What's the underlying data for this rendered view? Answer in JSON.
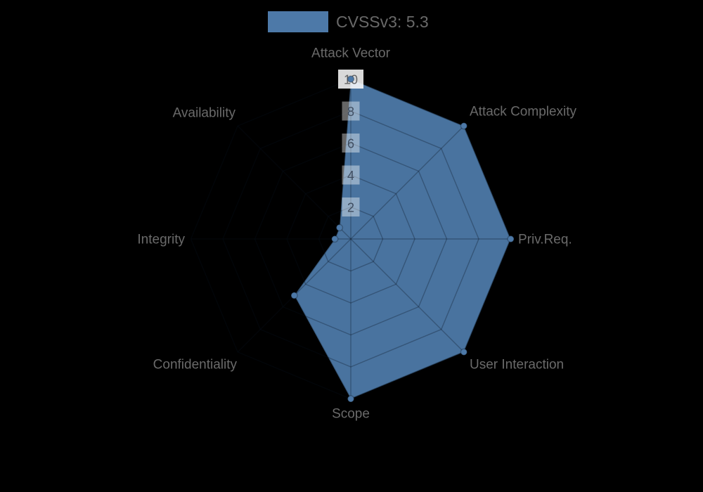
{
  "page": {
    "background_color": "#000000"
  },
  "legend": {
    "label": "CVSSv3: 5.3",
    "swatch_color": "#4D79A8",
    "text_color": "#696969"
  },
  "chart_data": {
    "type": "radar",
    "title": "CVSSv3: 5.3",
    "categories": [
      "Attack Vector",
      "Attack Complexity",
      "Priv.Req.",
      "User Interaction",
      "Scope",
      "Confidentiality",
      "Integrity",
      "Availability"
    ],
    "series": [
      {
        "name": "CVSSv3: 5.3",
        "values": [
          10,
          10,
          10,
          10,
          10,
          5,
          1,
          1
        ]
      }
    ],
    "tick_values": [
      2,
      4,
      6,
      8,
      10
    ],
    "rlim": [
      0,
      10
    ],
    "grid": true,
    "grid_shape": "polygon",
    "legend_position": "top-center",
    "colors": {
      "fill": "#4D79A8",
      "fill_opacity": 0.95,
      "border": "rgba(0,0,0,0.28)",
      "grid_line": "rgba(5,15,30,0.3)",
      "axis_label": "#6a6a6a",
      "tick_text": "#3f4d60",
      "tick_text_outer": "#666666",
      "tick_backdrop": "rgba(255,255,255,0.40)",
      "tick_backdrop_outer": "rgba(255,255,255,0.85)",
      "point_dot": "#4D79A8"
    }
  }
}
